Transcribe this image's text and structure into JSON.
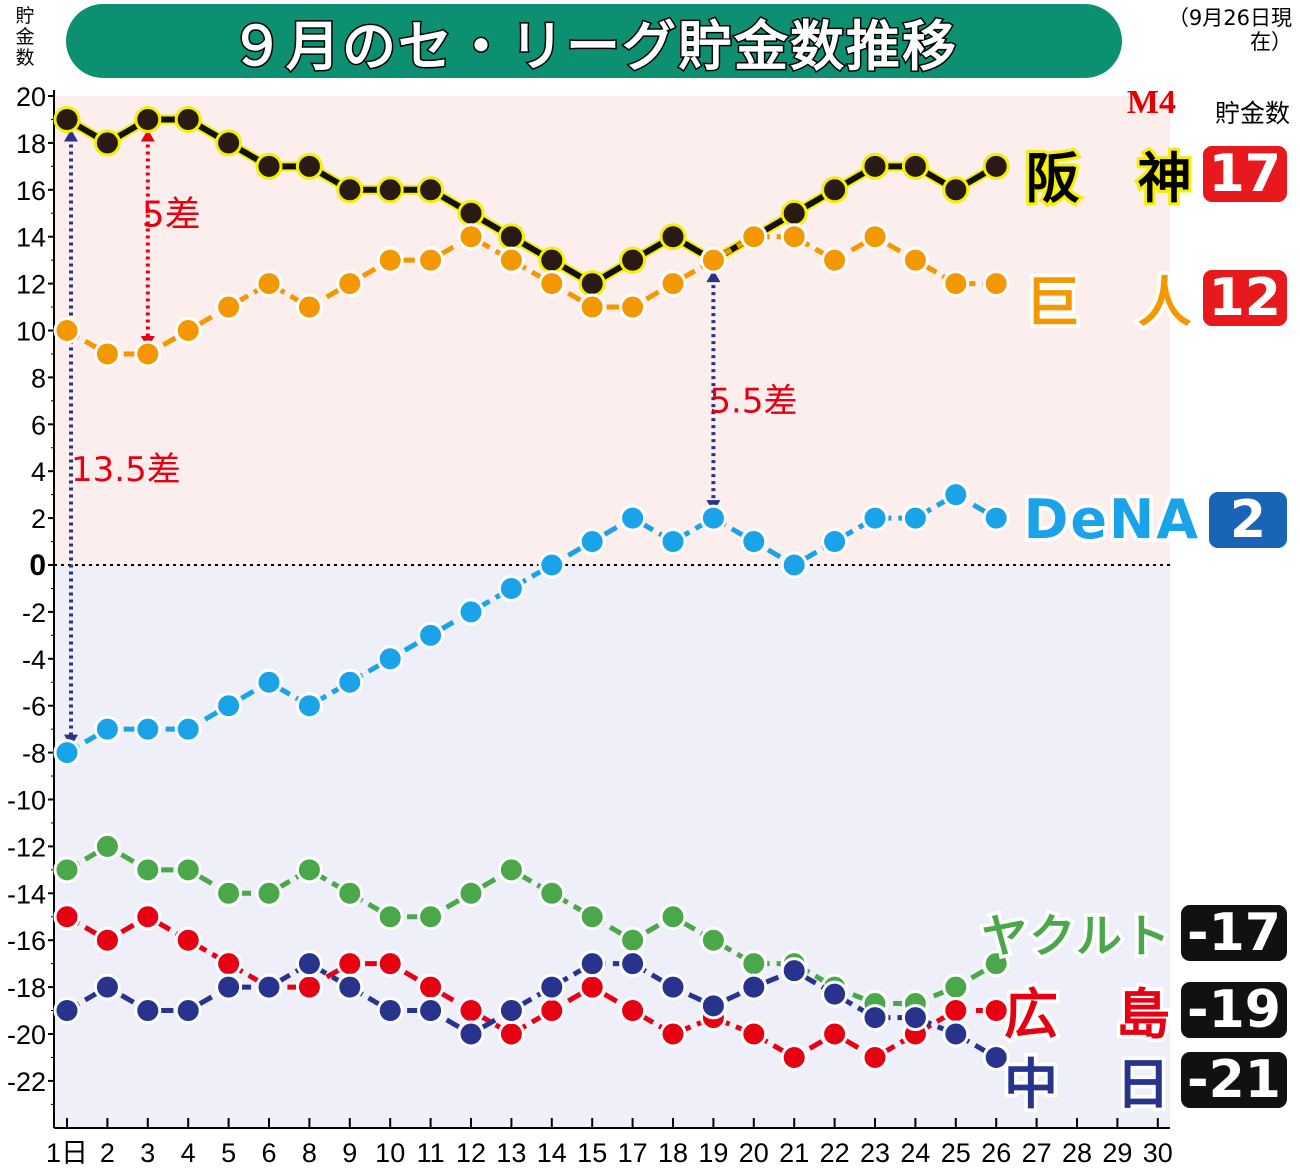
{
  "header": {
    "title": "９月のセ・リーグ貯金数推移",
    "y_axis_label": "貯金数",
    "as_of": "（9月26日現在）"
  },
  "legend": {
    "value_header": "貯金数",
    "magic_number": "M4",
    "teams": [
      {
        "name": "阪　神",
        "value": "17",
        "badge_color": "#e8191c"
      },
      {
        "name": "巨　人",
        "value": "12",
        "badge_color": "#e8191c"
      },
      {
        "name": "DeNA",
        "value": "2",
        "badge_color": "#1a64b7"
      },
      {
        "name": "ヤクルト",
        "value": "-17",
        "badge_color": "#111111"
      },
      {
        "name": "広　島",
        "value": "-19",
        "badge_color": "#111111"
      },
      {
        "name": "中　日",
        "value": "-21",
        "badge_color": "#111111"
      }
    ]
  },
  "chart_data": {
    "type": "line",
    "title": "９月のセ・リーグ貯金数推移",
    "ylabel": "貯金数",
    "ylim": [
      -24,
      20
    ],
    "yticks": [
      20,
      18,
      16,
      14,
      12,
      10,
      8,
      6,
      4,
      2,
      0,
      -2,
      -4,
      -6,
      -8,
      -10,
      -12,
      -14,
      -16,
      -18,
      -20,
      -22
    ],
    "x_tick_labels": [
      "1日",
      "2",
      "3",
      "4",
      "5",
      "6",
      "8",
      "9",
      "10",
      "11",
      "12",
      "13",
      "14",
      "15",
      "17",
      "18",
      "19",
      "20",
      "21",
      "22",
      "23",
      "24",
      "25",
      "26",
      "27",
      "28",
      "29",
      "30"
    ],
    "x_data_labels": [
      "1",
      "2",
      "3",
      "4",
      "5",
      "6",
      "8",
      "9",
      "10",
      "11",
      "12",
      "13",
      "14",
      "15",
      "17",
      "18",
      "19",
      "20",
      "21",
      "22",
      "23",
      "24",
      "25",
      "26"
    ],
    "background": {
      "positive": "#fdeeee",
      "negative": "#eeeff8"
    },
    "series": [
      {
        "name": "阪神",
        "color": "#111111",
        "fill": "#2a1a14",
        "ring": "#f5f000",
        "line": "solid",
        "values": [
          19,
          18,
          19,
          19,
          18,
          17,
          17,
          16,
          16,
          16,
          15,
          14,
          13,
          12,
          13,
          14,
          13,
          14,
          15,
          16,
          17,
          17,
          16,
          17
        ]
      },
      {
        "name": "巨人",
        "color": "#f39800",
        "fill": "#f39800",
        "ring": "#ffffff",
        "line": "dashed",
        "values": [
          10,
          9,
          9,
          10,
          11,
          12,
          11,
          12,
          13,
          13,
          14,
          13,
          12,
          11,
          11,
          12,
          13,
          14,
          14,
          13,
          14,
          13,
          12,
          12
        ]
      },
      {
        "name": "DeNA",
        "color": "#1aa3e8",
        "fill": "#1aa3e8",
        "ring": "#ffffff",
        "line": "dashed",
        "values": [
          -8,
          -7,
          -7,
          -7,
          -6,
          -5,
          -6,
          -5,
          -4,
          -3,
          -2,
          -1,
          0,
          1,
          2,
          1,
          2,
          1,
          0,
          1,
          2,
          2,
          3,
          2
        ]
      },
      {
        "name": "ヤクルト",
        "color": "#4aa84a",
        "fill": "#4aa84a",
        "ring": "#ffffff",
        "line": "dashed",
        "values": [
          -13,
          -12,
          -13,
          -13,
          -14,
          -14,
          -13,
          -14,
          -15,
          -15,
          -14,
          -13,
          -14,
          -15,
          -16,
          -15,
          -16,
          -17,
          -17,
          -18,
          -18.7,
          -18.7,
          -18,
          -17
        ]
      },
      {
        "name": "広島",
        "color": "#e60012",
        "fill": "#e60012",
        "ring": "#ffffff",
        "line": "dashed",
        "values": [
          -15,
          -16,
          -15,
          -16,
          -17,
          -18,
          -18,
          -17,
          -17,
          -18,
          -19,
          -20,
          -19,
          -18,
          -19,
          -20,
          -19.3,
          -20,
          -21,
          -20,
          -21,
          -20,
          -19,
          -19
        ]
      },
      {
        "name": "中日",
        "color": "#27338c",
        "fill": "#27338c",
        "ring": "#ffffff",
        "line": "dashed",
        "values": [
          -19,
          -18,
          -19,
          -19,
          -18,
          -18,
          -17,
          -18,
          -19,
          -19,
          -20,
          -19,
          -18,
          -17,
          -17,
          -18,
          -18.8,
          -18,
          -17.3,
          -18.3,
          -19.3,
          -19.3,
          -20,
          -21
        ]
      }
    ],
    "annotations": [
      {
        "label": "5差",
        "x_index": 2,
        "from": 19,
        "to": 9,
        "color": "#e60012"
      },
      {
        "label": "13.5差",
        "x_index": 0,
        "from": 19,
        "to": -8,
        "color": "#27338c",
        "label_color": "#e60012"
      },
      {
        "label": "5.5差",
        "x_index": 16,
        "from": 13,
        "to": 2,
        "color": "#27338c",
        "label_color": "#e60012"
      }
    ]
  }
}
